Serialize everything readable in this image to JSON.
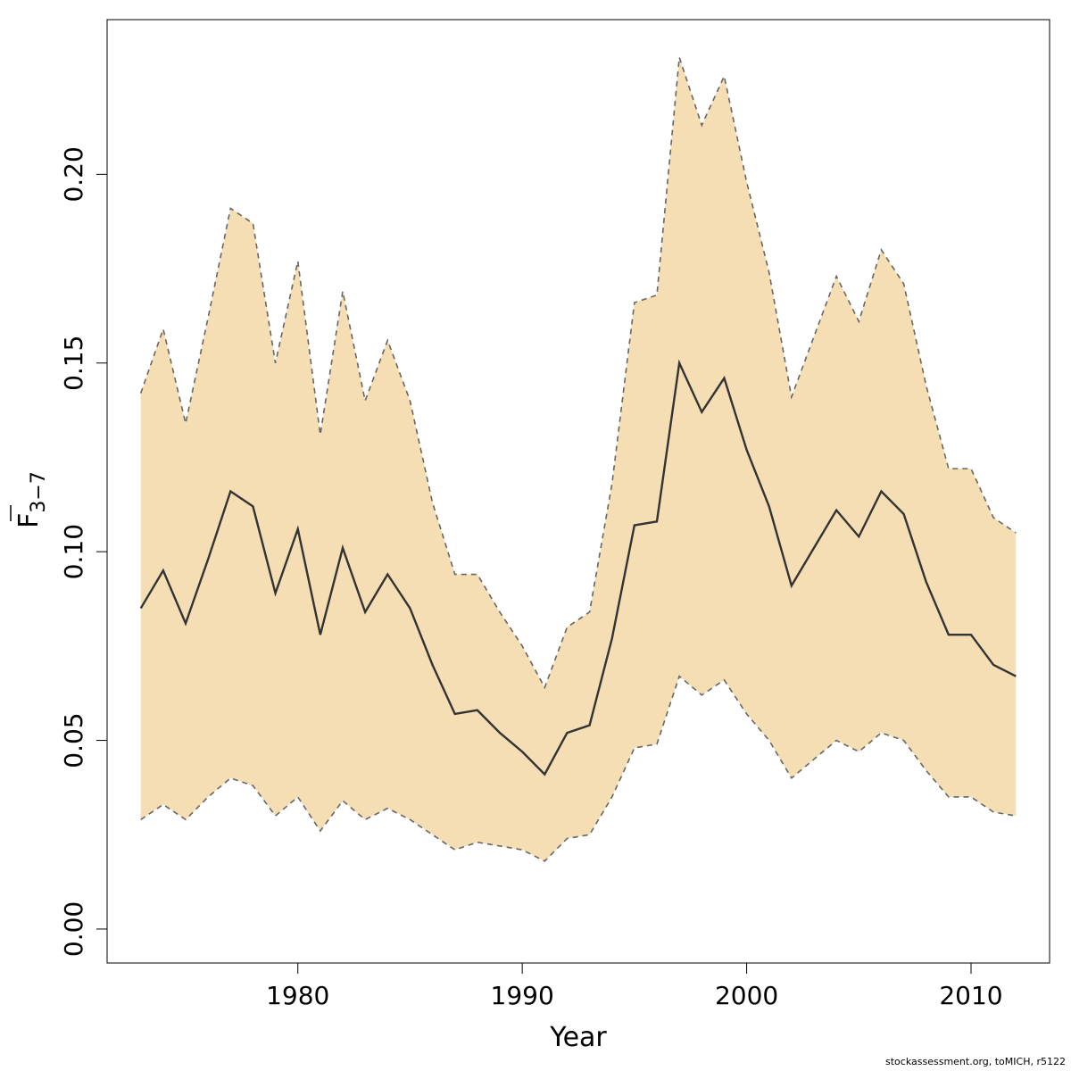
{
  "chart_data": {
    "type": "line",
    "xlabel": "Year",
    "ylabel_main": "F",
    "ylabel_sub": "3−7",
    "x_ticks": [
      1980,
      1990,
      2000,
      2010
    ],
    "y_ticks": [
      "0.00",
      "0.05",
      "0.10",
      "0.15",
      "0.20"
    ],
    "xlim": [
      1971.5,
      2013.5
    ],
    "ylim": [
      -0.009,
      0.241
    ],
    "colors": {
      "band": "#f5deb3",
      "line": "#333333",
      "bound": "#666666"
    },
    "x": [
      1973,
      1974,
      1975,
      1976,
      1977,
      1978,
      1979,
      1980,
      1981,
      1982,
      1983,
      1984,
      1985,
      1986,
      1987,
      1988,
      1989,
      1990,
      1991,
      1992,
      1993,
      1994,
      1995,
      1996,
      1997,
      1998,
      1999,
      2000,
      2001,
      2002,
      2003,
      2004,
      2005,
      2006,
      2007,
      2008,
      2009,
      2010,
      2011,
      2012
    ],
    "series": [
      {
        "role": "estimate",
        "values": [
          0.085,
          0.095,
          0.081,
          0.098,
          0.116,
          0.112,
          0.089,
          0.106,
          0.078,
          0.101,
          0.084,
          0.094,
          0.085,
          0.07,
          0.057,
          0.058,
          0.052,
          0.047,
          0.041,
          0.052,
          0.054,
          0.077,
          0.107,
          0.108,
          0.15,
          0.137,
          0.146,
          0.127,
          0.112,
          0.091,
          0.101,
          0.111,
          0.104,
          0.116,
          0.11,
          0.092,
          0.078,
          0.078,
          0.07,
          0.067
        ]
      },
      {
        "role": "upper",
        "values": [
          0.142,
          0.159,
          0.134,
          0.162,
          0.191,
          0.187,
          0.15,
          0.177,
          0.131,
          0.169,
          0.14,
          0.156,
          0.14,
          0.113,
          0.094,
          0.094,
          0.084,
          0.075,
          0.064,
          0.08,
          0.084,
          0.118,
          0.166,
          0.168,
          0.231,
          0.213,
          0.226,
          0.198,
          0.174,
          0.141,
          0.157,
          0.173,
          0.161,
          0.18,
          0.171,
          0.144,
          0.122,
          0.122,
          0.109,
          0.105
        ]
      },
      {
        "role": "lower",
        "values": [
          0.029,
          0.033,
          0.029,
          0.035,
          0.04,
          0.038,
          0.03,
          0.035,
          0.026,
          0.034,
          0.029,
          0.032,
          0.029,
          0.025,
          0.021,
          0.023,
          0.022,
          0.021,
          0.018,
          0.024,
          0.025,
          0.035,
          0.048,
          0.049,
          0.067,
          0.062,
          0.066,
          0.057,
          0.05,
          0.04,
          0.045,
          0.05,
          0.047,
          0.052,
          0.05,
          0.042,
          0.035,
          0.035,
          0.031,
          0.03
        ]
      }
    ]
  },
  "footer": {
    "credit": "stockassessment.org, toMICH, r5122"
  }
}
